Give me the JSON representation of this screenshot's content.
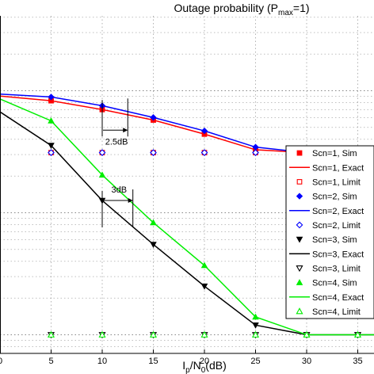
{
  "chart_data": {
    "type": "line",
    "title_main": "Outage probability (P",
    "title_sub": "max",
    "title_end": "=1)",
    "xlabel_main": "I",
    "xlabel_sub1": "p",
    "xlabel_mid": "/N",
    "xlabel_sub2": "0",
    "xlabel_end": "(dB)",
    "x_ticks": [
      "0",
      "5",
      "10",
      "15",
      "20",
      "25",
      "30",
      "35"
    ],
    "xlim": [
      0,
      37
    ],
    "grid": true,
    "legend_position": "right",
    "x": [
      0,
      5,
      10,
      15,
      20,
      25,
      30,
      35,
      37
    ],
    "series": [
      {
        "name": "Scn=1, Sim",
        "color": "#ff0000",
        "marker": "square-filled",
        "role": "sim",
        "values": [
          0.904,
          0.828,
          0.701,
          0.575,
          0.441,
          0.328,
          0.311,
          0.311,
          0.311
        ]
      },
      {
        "name": "Scn=1, Exact",
        "color": "#ff0000",
        "marker": "none",
        "role": "exact",
        "values": [
          0.904,
          0.828,
          0.701,
          0.575,
          0.441,
          0.328,
          0.311,
          0.311,
          0.311
        ]
      },
      {
        "name": "Scn=1, Limit",
        "color": "#ff0000",
        "marker": "square-open",
        "role": "limit",
        "values": [
          0.311,
          0.311,
          0.311,
          0.311,
          0.311,
          0.311,
          0.311,
          0.311,
          0.311
        ]
      },
      {
        "name": "Scn=2, Sim",
        "color": "#0000ff",
        "marker": "diamond-filled",
        "role": "sim",
        "values": [
          0.938,
          0.889,
          0.754,
          0.604,
          0.469,
          0.345,
          0.311,
          0.311,
          0.311
        ]
      },
      {
        "name": "Scn=2, Exact",
        "color": "#0000ff",
        "marker": "none",
        "role": "exact",
        "values": [
          0.938,
          0.889,
          0.754,
          0.604,
          0.469,
          0.345,
          0.311,
          0.311,
          0.311
        ]
      },
      {
        "name": "Scn=2, Limit",
        "color": "#0000ff",
        "marker": "diamond-open",
        "role": "limit",
        "values": [
          0.311,
          0.311,
          0.311,
          0.311,
          0.311,
          0.311,
          0.311,
          0.311,
          0.311
        ]
      },
      {
        "name": "Scn=3, Sim",
        "color": "#000000",
        "marker": "tri-down-filled",
        "role": "sim",
        "values": [
          0.671,
          0.356,
          0.126,
          0.055,
          0.025,
          0.012,
          0.01,
          0.01,
          0.01
        ]
      },
      {
        "name": "Scn=3, Exact",
        "color": "#000000",
        "marker": "none",
        "role": "exact",
        "values": [
          0.671,
          0.356,
          0.126,
          0.055,
          0.025,
          0.012,
          0.01,
          0.01,
          0.01
        ]
      },
      {
        "name": "Scn=3, Limit",
        "color": "#000000",
        "marker": "tri-down-open",
        "role": "limit",
        "values": [
          0.01,
          0.01,
          0.01,
          0.01,
          0.01,
          0.01,
          0.01,
          0.01,
          0.01
        ]
      },
      {
        "name": "Scn=4, Sim",
        "color": "#00ee00",
        "marker": "tri-up-filled",
        "role": "sim",
        "values": [
          0.856,
          0.567,
          0.204,
          0.083,
          0.037,
          0.014,
          0.01,
          0.01,
          0.01
        ]
      },
      {
        "name": "Scn=4, Exact",
        "color": "#00ee00",
        "marker": "none",
        "role": "exact",
        "values": [
          0.856,
          0.567,
          0.204,
          0.083,
          0.037,
          0.014,
          0.01,
          0.01,
          0.01
        ]
      },
      {
        "name": "Scn=4, Limit",
        "color": "#00ee00",
        "marker": "tri-up-open",
        "role": "limit",
        "values": [
          0.01,
          0.01,
          0.01,
          0.01,
          0.01,
          0.01,
          0.01,
          0.01,
          0.01
        ]
      }
    ],
    "annotations": [
      {
        "text": "2.5dB",
        "x_from": 10,
        "x_to": 12.5,
        "y": 0.701
      },
      {
        "text": "3dB",
        "x_from": 10,
        "x_to": 13,
        "y": 0.126
      }
    ]
  }
}
